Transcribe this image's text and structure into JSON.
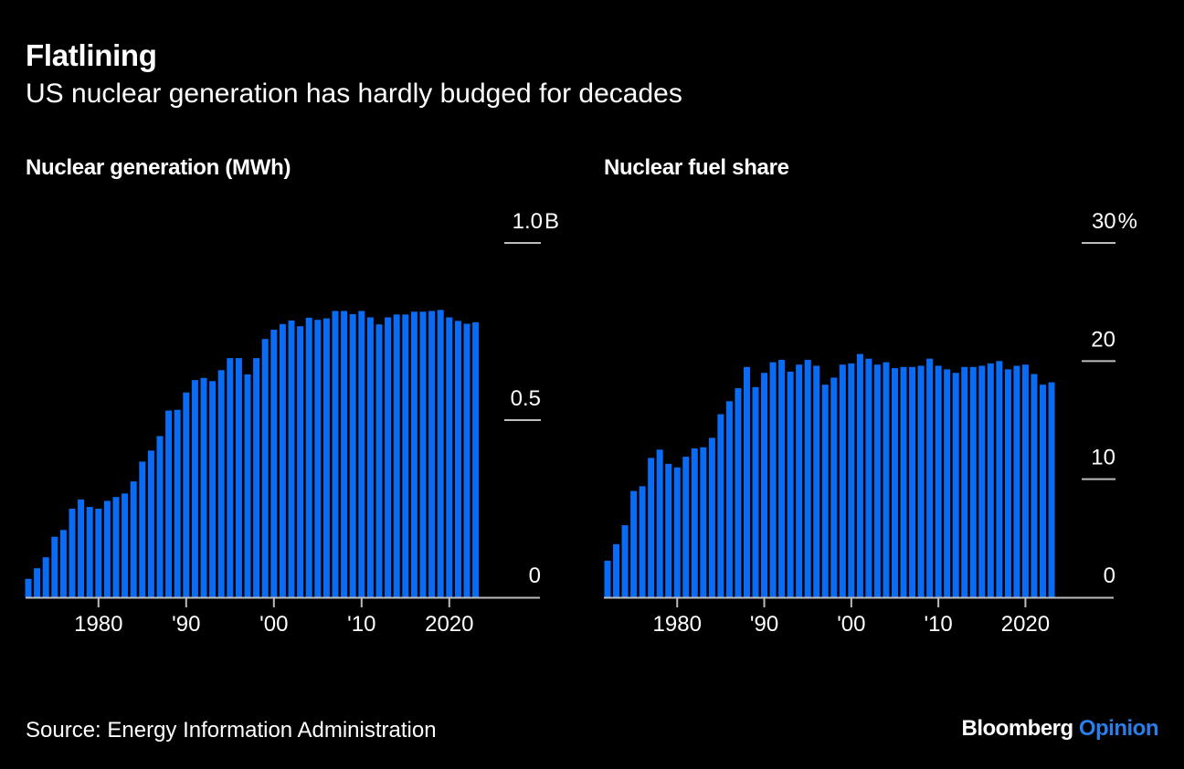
{
  "header": {
    "title": "Flatlining",
    "subtitle": "US nuclear generation has hardly budged for decades"
  },
  "colors": {
    "bar": "#0a6cf5",
    "axis": "#bdbdbd",
    "text": "#ffffff",
    "background": "#000000",
    "brand_accent": "#2b7de9"
  },
  "chart_data": [
    {
      "type": "bar",
      "title": "Nuclear generation (MWh)",
      "xlabel": "",
      "ylabel": "",
      "x": [
        1972,
        1973,
        1974,
        1975,
        1976,
        1977,
        1978,
        1979,
        1980,
        1981,
        1982,
        1983,
        1984,
        1985,
        1986,
        1987,
        1988,
        1989,
        1990,
        1991,
        1992,
        1993,
        1994,
        1995,
        1996,
        1997,
        1998,
        1999,
        2000,
        2001,
        2002,
        2003,
        2004,
        2005,
        2006,
        2007,
        2008,
        2009,
        2010,
        2011,
        2012,
        2013,
        2014,
        2015,
        2016,
        2017,
        2018,
        2019,
        2020,
        2021,
        2022,
        2023
      ],
      "values": [
        0.052,
        0.082,
        0.113,
        0.171,
        0.19,
        0.25,
        0.276,
        0.255,
        0.25,
        0.272,
        0.283,
        0.293,
        0.327,
        0.383,
        0.414,
        0.455,
        0.527,
        0.529,
        0.578,
        0.613,
        0.619,
        0.61,
        0.641,
        0.675,
        0.675,
        0.629,
        0.675,
        0.729,
        0.755,
        0.771,
        0.781,
        0.765,
        0.789,
        0.783,
        0.787,
        0.808,
        0.808,
        0.799,
        0.808,
        0.79,
        0.77,
        0.79,
        0.798,
        0.798,
        0.806,
        0.806,
        0.808,
        0.811,
        0.79,
        0.78,
        0.772,
        0.776
      ],
      "value_unit": "billion MWh",
      "ylim": [
        0,
        1.0
      ],
      "yticks": [
        {
          "value": 0,
          "label": "0"
        },
        {
          "value": 0.5,
          "label": "0.5"
        },
        {
          "value": 1.0,
          "label": "1.0B"
        }
      ],
      "xticks": [
        {
          "value": 1980,
          "label": "1980"
        },
        {
          "value": 1990,
          "label": "'90"
        },
        {
          "value": 2000,
          "label": "'00"
        },
        {
          "value": 2010,
          "label": "'10"
        },
        {
          "value": 2020,
          "label": "2020"
        }
      ],
      "grid": false,
      "legend": "none"
    },
    {
      "type": "bar",
      "title": "Nuclear fuel share",
      "xlabel": "",
      "ylabel": "",
      "x": [
        1972,
        1973,
        1974,
        1975,
        1976,
        1977,
        1978,
        1979,
        1980,
        1981,
        1982,
        1983,
        1984,
        1985,
        1986,
        1987,
        1988,
        1989,
        1990,
        1991,
        1992,
        1993,
        1994,
        1995,
        1996,
        1997,
        1998,
        1999,
        2000,
        2001,
        2002,
        2003,
        2004,
        2005,
        2006,
        2007,
        2008,
        2009,
        2010,
        2011,
        2012,
        2013,
        2014,
        2015,
        2016,
        2017,
        2018,
        2019,
        2020,
        2021,
        2022,
        2023
      ],
      "values": [
        3.1,
        4.5,
        6.1,
        9.0,
        9.4,
        11.8,
        12.5,
        11.3,
        11.0,
        11.9,
        12.6,
        12.7,
        13.5,
        15.5,
        16.6,
        17.7,
        19.5,
        17.8,
        19.0,
        19.9,
        20.1,
        19.1,
        19.7,
        20.1,
        19.6,
        18.0,
        18.6,
        19.7,
        19.8,
        20.6,
        20.2,
        19.7,
        19.9,
        19.4,
        19.5,
        19.5,
        19.6,
        20.2,
        19.6,
        19.3,
        19.0,
        19.5,
        19.5,
        19.6,
        19.8,
        20.0,
        19.3,
        19.6,
        19.7,
        18.9,
        18.0,
        18.2
      ],
      "value_unit": "percent",
      "ylim": [
        0,
        30
      ],
      "yticks": [
        {
          "value": 0,
          "label": "0"
        },
        {
          "value": 10,
          "label": "10"
        },
        {
          "value": 20,
          "label": "20"
        },
        {
          "value": 30,
          "label": "30%"
        }
      ],
      "xticks": [
        {
          "value": 1980,
          "label": "1980"
        },
        {
          "value": 1990,
          "label": "'90"
        },
        {
          "value": 2000,
          "label": "'00"
        },
        {
          "value": 2010,
          "label": "'10"
        },
        {
          "value": 2020,
          "label": "2020"
        }
      ],
      "grid": false,
      "legend": "none"
    }
  ],
  "footer": {
    "source": "Source: Energy Information Administration",
    "brand_main": "Bloomberg",
    "brand_accent": "Opinion"
  }
}
